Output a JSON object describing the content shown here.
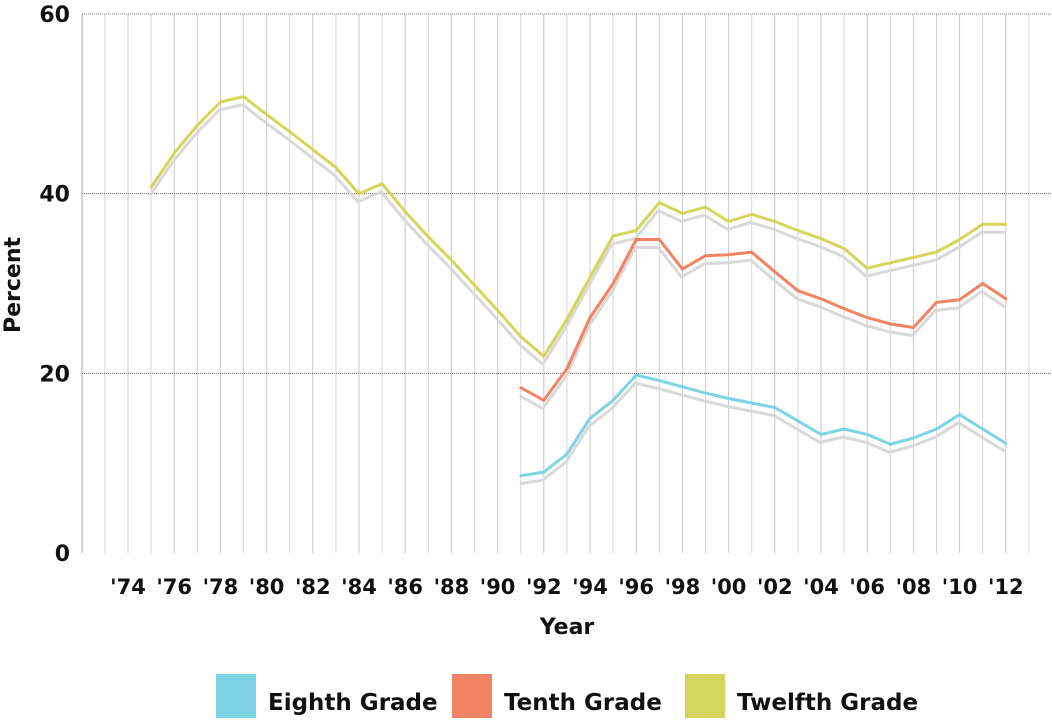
{
  "chart_data": {
    "type": "line",
    "title": "",
    "xlabel": "Year",
    "ylabel": "Percent",
    "xlim": [
      1972,
      2013
    ],
    "ylim": [
      0,
      60
    ],
    "x_ticks": [
      1974,
      1976,
      1978,
      1980,
      1982,
      1984,
      1986,
      1988,
      1990,
      1992,
      1994,
      1996,
      1998,
      2000,
      2002,
      2004,
      2006,
      2008,
      2010,
      2012
    ],
    "x_tick_labels": [
      "'74",
      "'76",
      "'78",
      "'80",
      "'82",
      "'84",
      "'86",
      "'88",
      "'90",
      "'92",
      "'94",
      "'96",
      "'98",
      "'00",
      "'02",
      "'04",
      "'06",
      "'08",
      "'10",
      "'12"
    ],
    "y_ticks": [
      0,
      20,
      40,
      60
    ],
    "y_tick_labels": [
      "0",
      "20",
      "40",
      "60"
    ],
    "grid": {
      "vertical": true,
      "horizontal": true
    },
    "legend_position": "bottom",
    "series": [
      {
        "name": "Eighth Grade",
        "color": "#7fd3e6",
        "x": [
          1991,
          1992,
          1993,
          1994,
          1995,
          1996,
          1997,
          1998,
          1999,
          2000,
          2001,
          2002,
          2003,
          2004,
          2005,
          2006,
          2007,
          2008,
          2009,
          2010,
          2011,
          2012
        ],
        "y": [
          8.6,
          9.0,
          11.0,
          15.0,
          17.0,
          19.8,
          19.2,
          18.5,
          17.8,
          17.2,
          16.7,
          16.2,
          14.7,
          13.2,
          13.8,
          13.2,
          12.1,
          12.8,
          13.8,
          15.4,
          13.8,
          12.2
        ]
      },
      {
        "name": "Tenth Grade",
        "color": "#f28464",
        "x": [
          1991,
          1992,
          1993,
          1994,
          1995,
          1996,
          1997,
          1998,
          1999,
          2000,
          2001,
          2002,
          2003,
          2004,
          2005,
          2006,
          2007,
          2008,
          2009,
          2010,
          2011,
          2012
        ],
        "y": [
          18.4,
          17.0,
          20.5,
          26.2,
          30.0,
          34.9,
          34.9,
          31.6,
          33.1,
          33.2,
          33.5,
          31.3,
          29.2,
          28.3,
          27.2,
          26.2,
          25.5,
          25.1,
          27.9,
          28.2,
          30.0,
          28.3
        ]
      },
      {
        "name": "Twelfth Grade",
        "color": "#d4d65c",
        "x": [
          1975,
          1976,
          1977,
          1978,
          1979,
          1980,
          1981,
          1982,
          1983,
          1984,
          1985,
          1986,
          1987,
          1988,
          1989,
          1990,
          1991,
          1992,
          1993,
          1994,
          1995,
          1996,
          1997,
          1998,
          1999,
          2000,
          2001,
          2002,
          2003,
          2004,
          2005,
          2006,
          2007,
          2008,
          2009,
          2010,
          2011,
          2012
        ],
        "y": [
          40.7,
          44.5,
          47.6,
          50.2,
          50.8,
          48.8,
          46.9,
          44.9,
          42.9,
          40.0,
          41.1,
          38.0,
          35.2,
          32.6,
          29.8,
          27.0,
          24.1,
          21.9,
          26.0,
          30.7,
          35.3,
          35.9,
          39.0,
          37.8,
          38.5,
          36.9,
          37.7,
          36.9,
          35.9,
          35.0,
          33.9,
          31.7,
          32.3,
          32.9,
          33.5,
          34.9,
          36.6,
          36.6
        ]
      }
    ]
  }
}
